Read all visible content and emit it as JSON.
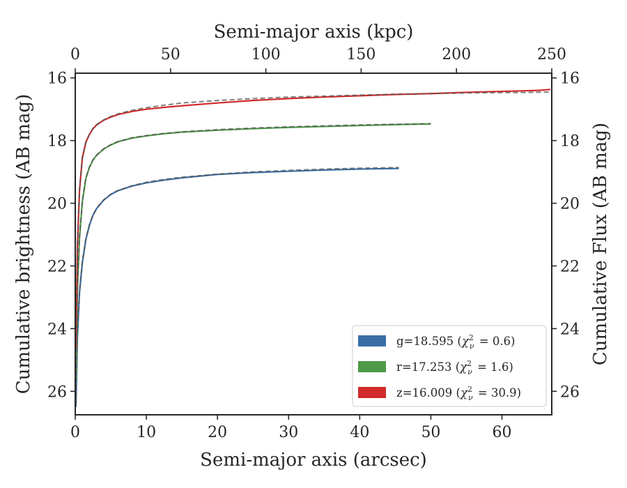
{
  "chart_data": {
    "type": "line",
    "xlabel": "Semi-major axis (arcsec)",
    "ylabel": "Cumulative brightness (AB mag)",
    "top_xlabel": "Semi-major axis (kpc)",
    "right_ylabel": "Cumulative Flux (AB mag)",
    "xlim": [
      0,
      67
    ],
    "ylim": [
      26.75,
      15.85
    ],
    "y_inverted": true,
    "top_xlim": [
      0,
      250
    ],
    "x_ticks": [
      "0",
      "10",
      "20",
      "30",
      "40",
      "50",
      "60"
    ],
    "y_ticks": [
      "16",
      "18",
      "20",
      "22",
      "24",
      "26"
    ],
    "top_x_ticks": [
      "0",
      "50",
      "100",
      "150",
      "200",
      "250"
    ],
    "right_y_ticks": [
      "16",
      "18",
      "20",
      "22",
      "24",
      "26"
    ],
    "grid": false,
    "legend_position": "lower-right",
    "model_line_style": "gray dashed",
    "series": [
      {
        "name": "g=18.595",
        "chi2": "0.6",
        "color": "#3a6ea5",
        "x": [
          0.1,
          0.3,
          0.6,
          1.0,
          1.5,
          2.0,
          2.5,
          3,
          4,
          5,
          6,
          8,
          10,
          12.5,
          15,
          20,
          25,
          30,
          35,
          40,
          45.5
        ],
        "y": [
          26.5,
          24.3,
          22.85,
          21.9,
          21.15,
          20.7,
          20.38,
          20.17,
          19.9,
          19.72,
          19.6,
          19.45,
          19.35,
          19.26,
          19.19,
          19.08,
          19.02,
          18.98,
          18.94,
          18.91,
          18.89
        ],
        "model_y": [
          26.4,
          24.2,
          22.8,
          21.85,
          21.12,
          20.68,
          20.37,
          20.16,
          19.89,
          19.71,
          19.59,
          19.44,
          19.33,
          19.24,
          19.17,
          19.07,
          19.0,
          18.95,
          18.91,
          18.88,
          18.86
        ]
      },
      {
        "name": "r=17.253",
        "chi2": "1.6",
        "color": "#4e9a47",
        "x": [
          0.1,
          0.3,
          0.6,
          1.0,
          1.5,
          2.0,
          2.5,
          3,
          4,
          5,
          6,
          8,
          10,
          12.5,
          15,
          20,
          25,
          30,
          35,
          40,
          45,
          50
        ],
        "y": [
          25.6,
          22.8,
          21.1,
          19.95,
          19.2,
          18.85,
          18.62,
          18.47,
          18.27,
          18.14,
          18.04,
          17.92,
          17.85,
          17.78,
          17.73,
          17.67,
          17.62,
          17.58,
          17.55,
          17.52,
          17.49,
          17.47
        ],
        "model_y": [
          25.5,
          22.7,
          21.05,
          19.92,
          19.18,
          18.84,
          18.61,
          18.46,
          18.26,
          18.13,
          18.03,
          17.91,
          17.84,
          17.77,
          17.72,
          17.65,
          17.6,
          17.56,
          17.53,
          17.5,
          17.48,
          17.46
        ]
      },
      {
        "name": "z=16.009",
        "chi2": "30.9",
        "color": "#d12a2a",
        "x": [
          0.1,
          0.3,
          0.6,
          1.0,
          1.5,
          2.0,
          2.5,
          3,
          4,
          5,
          6,
          8,
          10,
          12.5,
          15,
          20,
          25,
          30,
          35,
          40,
          45,
          50,
          55,
          60,
          65,
          66.8
        ],
        "y": [
          24.6,
          21.4,
          19.6,
          18.55,
          18.05,
          17.8,
          17.62,
          17.5,
          17.35,
          17.25,
          17.17,
          17.07,
          17.0,
          16.94,
          16.89,
          16.8,
          16.72,
          16.66,
          16.61,
          16.57,
          16.53,
          16.5,
          16.46,
          16.43,
          16.4,
          16.37
        ],
        "model_y": [
          24.5,
          21.3,
          19.55,
          18.52,
          18.03,
          17.79,
          17.61,
          17.49,
          17.34,
          17.23,
          17.15,
          17.03,
          16.95,
          16.87,
          16.8,
          16.72,
          16.66,
          16.61,
          16.58,
          16.55,
          16.52,
          16.5,
          16.48,
          16.47,
          16.46,
          16.45
        ]
      }
    ]
  },
  "legend": {
    "entries": [
      {
        "name": "g=18.595",
        "chi2": "0.6",
        "color": "#3a6ea5"
      },
      {
        "name": "r=17.253",
        "chi2": "1.6",
        "color": "#4e9a47"
      },
      {
        "name": "z=16.009",
        "chi2": "30.9",
        "color": "#d12a2a"
      }
    ]
  }
}
